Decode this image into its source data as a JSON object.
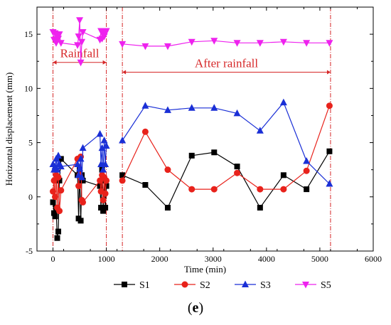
{
  "figure": {
    "panel_label_open": "(",
    "panel_label_letter": "e",
    "panel_label_close": ")"
  },
  "chart_data": {
    "type": "line",
    "xlabel": "Time (min)",
    "ylabel": "Horizontal displacement (mm)",
    "xlim": [
      -300,
      6000
    ],
    "ylim": [
      -5,
      17.5
    ],
    "xticks": [
      0,
      1000,
      2000,
      3000,
      4000,
      5000,
      6000
    ],
    "yticks": [
      -5,
      0,
      5,
      10,
      15
    ],
    "legend_position": "bottom",
    "annotations": [
      {
        "label": "Rainfall",
        "x_start": 0,
        "x_end": 1000,
        "y": 12.4,
        "color": "#d62728"
      },
      {
        "label": "After rainfall",
        "x_start": 1300,
        "x_end": 5200,
        "y": 11.5,
        "color": "#d62728"
      }
    ],
    "vertical_lines": [
      0,
      1000,
      1300,
      5200
    ],
    "series": [
      {
        "name": "S1",
        "color": "#000000",
        "marker": "square",
        "x": [
          0,
          20,
          40,
          60,
          80,
          100,
          120,
          150,
          460,
          480,
          500,
          520,
          540,
          560,
          880,
          900,
          920,
          940,
          960,
          980,
          1000,
          1300,
          1730,
          2150,
          2600,
          3020,
          3450,
          3880,
          4320,
          4750,
          5180
        ],
        "y": [
          -0.5,
          -1.5,
          -1.8,
          -1.0,
          -3.8,
          -3.2,
          1.5,
          3.5,
          2.0,
          -2.0,
          2.5,
          -2.2,
          2.0,
          1.5,
          1.0,
          -1.0,
          2.5,
          -1.3,
          1.5,
          -1.0,
          1.0,
          2.0,
          1.1,
          -1.0,
          3.8,
          4.1,
          2.8,
          -1.0,
          2.0,
          0.7,
          4.2
        ]
      },
      {
        "name": "S2",
        "color": "#e8221b",
        "marker": "circle",
        "x": [
          0,
          20,
          40,
          60,
          80,
          100,
          120,
          150,
          460,
          480,
          500,
          520,
          540,
          560,
          880,
          900,
          920,
          940,
          960,
          980,
          1000,
          1300,
          1730,
          2150,
          2600,
          3020,
          3450,
          3880,
          4320,
          4750,
          5180
        ],
        "y": [
          0.5,
          1.5,
          0.0,
          2.0,
          -1.0,
          1.8,
          -1.3,
          0.6,
          3.5,
          1.0,
          2.0,
          3.7,
          -0.3,
          -0.5,
          1.5,
          0.5,
          2.0,
          -0.3,
          1.8,
          0.3,
          1.5,
          1.5,
          6.0,
          2.5,
          0.7,
          0.7,
          2.2,
          0.7,
          0.7,
          2.4,
          8.4
        ]
      },
      {
        "name": "S3",
        "color": "#1a2fd6",
        "marker": "triangle-up",
        "x": [
          0,
          20,
          40,
          60,
          80,
          100,
          120,
          150,
          460,
          480,
          500,
          520,
          540,
          560,
          880,
          900,
          920,
          940,
          960,
          980,
          1000,
          1300,
          1730,
          2150,
          2600,
          3020,
          3450,
          3880,
          4320,
          4750,
          5180
        ],
        "y": [
          3.0,
          2.5,
          2.8,
          3.5,
          2.5,
          3.8,
          3.0,
          2.8,
          3.0,
          2.0,
          2.6,
          3.5,
          1.8,
          4.5,
          5.8,
          3.0,
          4.5,
          2.5,
          5.2,
          3.0,
          4.7,
          5.2,
          8.4,
          8.0,
          8.2,
          8.2,
          7.7,
          6.1,
          8.7,
          3.3,
          1.2
        ]
      },
      {
        "name": "S5",
        "color": "#ee22ee",
        "marker": "triangle-down",
        "x": [
          0,
          20,
          40,
          60,
          80,
          100,
          120,
          150,
          460,
          480,
          500,
          520,
          540,
          560,
          880,
          900,
          920,
          940,
          960,
          980,
          1000,
          1300,
          1730,
          2150,
          2600,
          3020,
          3450,
          3880,
          4320,
          4750,
          5180
        ],
        "y": [
          15.2,
          14.5,
          15.1,
          14.2,
          15.0,
          14.6,
          15.0,
          14.2,
          14.0,
          14.8,
          16.3,
          12.4,
          14.3,
          15.2,
          14.5,
          15.3,
          14.6,
          15.2,
          14.8,
          15.1,
          15.3,
          14.1,
          13.9,
          13.9,
          14.3,
          14.4,
          14.2,
          14.2,
          14.3,
          14.2,
          14.2
        ]
      }
    ]
  }
}
